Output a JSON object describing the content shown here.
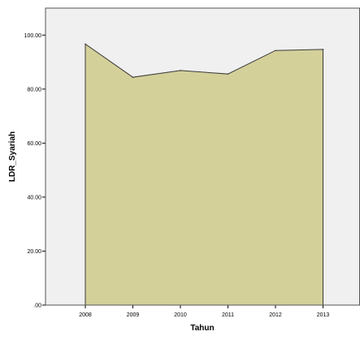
{
  "chart_data": {
    "type": "area",
    "title": "",
    "xlabel": "Tahun",
    "ylabel": "LDR_Syariah",
    "categories": [
      "2008",
      "2009",
      "2010",
      "2011",
      "2012",
      "2013"
    ],
    "values": [
      96.7,
      84.4,
      86.9,
      85.6,
      94.3,
      94.7
    ],
    "ylim": [
      0,
      110
    ],
    "yticks": [
      0,
      20,
      40,
      60,
      80,
      100
    ],
    "ytick_labels": [
      ".00",
      "20.00",
      "40.00",
      "60.00",
      "80.00",
      "100.00"
    ],
    "grid": false,
    "colors": {
      "area_fill": "#d4d09a",
      "line": "#3a3a3a",
      "plot_background": "#f0f0f0",
      "frame": "#555555"
    }
  }
}
